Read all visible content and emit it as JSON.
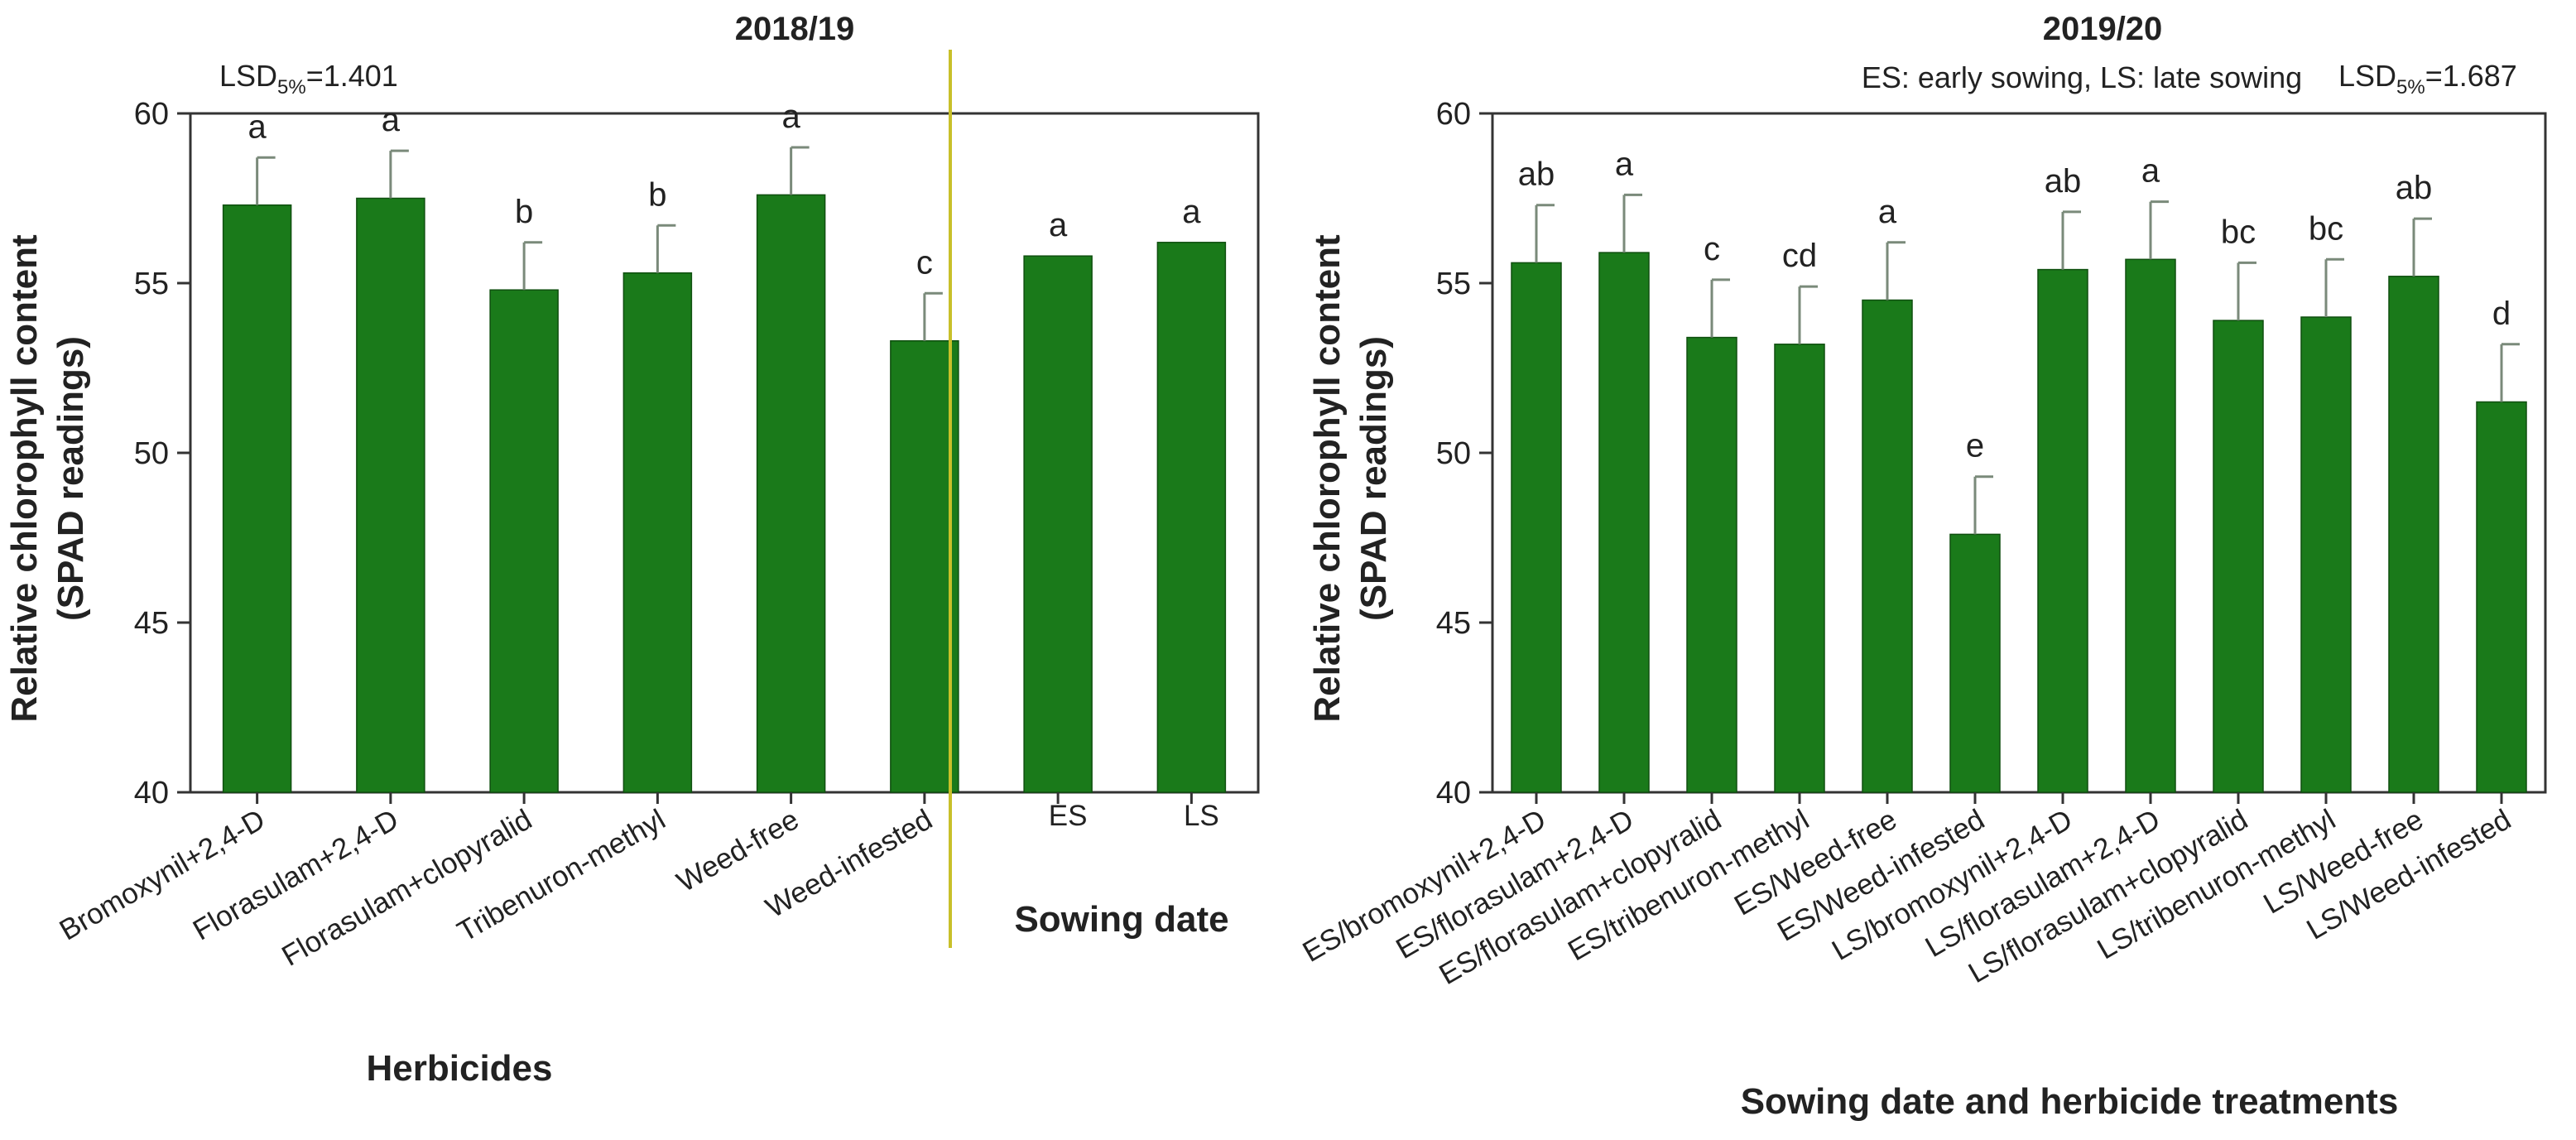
{
  "chart_data": [
    {
      "type": "bar",
      "title": "2018/19",
      "ylabel_line1": "Relative chlorophyll content",
      "ylabel_line2": "(SPAD readings)",
      "xlabel": "Herbicides",
      "group_label": "Sowing date",
      "lsd": {
        "prefix": "LSD",
        "sub": "5%",
        "value": "=1.401"
      },
      "ylim": [
        40,
        60
      ],
      "yticks": [
        "40",
        "45",
        "50",
        "55",
        "60"
      ],
      "color": "#1a7a1a",
      "error_color": "#7a8a7a",
      "separator_color": "#c8c02a",
      "categories": [
        "Bromoxynil+2,4-D",
        "Florasulam+2,4-D",
        "Florasulam+clopyralid",
        "Tribenuron-methyl",
        "Weed-free",
        "Weed-infested",
        "ES",
        "LS"
      ],
      "values": [
        57.3,
        57.5,
        54.8,
        55.3,
        57.6,
        53.3,
        55.8,
        56.2
      ],
      "errors": [
        1.4,
        1.4,
        1.4,
        1.4,
        1.4,
        1.4,
        0,
        0
      ],
      "letters": [
        "a",
        "a",
        "b",
        "b",
        "a",
        "c",
        "a",
        "a"
      ]
    },
    {
      "type": "bar",
      "title": "2019/20",
      "subtitle": "ES: early sowing, LS: late sowing",
      "ylabel_line1": "Relative chlorophyll content",
      "ylabel_line2": "(SPAD readings)",
      "xlabel": "Sowing date and herbicide treatments",
      "lsd": {
        "prefix": "LSD",
        "sub": "5%",
        "value": "=1.687"
      },
      "ylim": [
        40,
        60
      ],
      "yticks": [
        "40",
        "45",
        "50",
        "55",
        "60"
      ],
      "color": "#1a7a1a",
      "error_color": "#7a8a7a",
      "categories": [
        "ES/bromoxynil+2,4-D",
        "ES/florasulam+2,4-D",
        "ES/florasulam+clopyralid",
        "ES/tribenuron-methyl",
        "ES/Weed-free",
        "ES/Weed-infested",
        "LS/bromoxynil+2,4-D",
        "LS/florasulam+2,4-D",
        "LS/florasulam+clopyralid",
        "LS/tribenuron-methyl",
        "LS/Weed-free",
        "LS/Weed-infested"
      ],
      "values": [
        55.6,
        55.9,
        53.4,
        53.2,
        54.5,
        47.6,
        55.4,
        55.7,
        53.9,
        54.0,
        55.2,
        51.5
      ],
      "errors": [
        1.7,
        1.7,
        1.7,
        1.7,
        1.7,
        1.7,
        1.7,
        1.7,
        1.7,
        1.7,
        1.7,
        1.7
      ],
      "letters": [
        "ab",
        "a",
        "c",
        "cd",
        "a",
        "e",
        "ab",
        "a",
        "bc",
        "bc",
        "ab",
        "d"
      ]
    }
  ]
}
